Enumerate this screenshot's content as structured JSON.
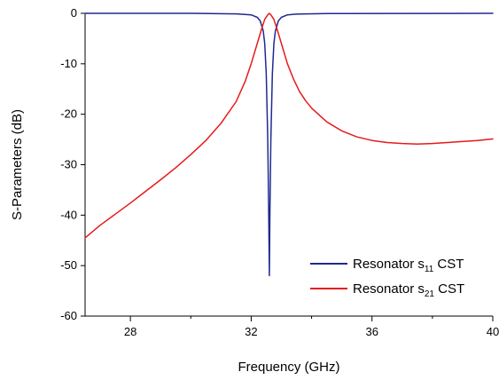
{
  "chart_data": {
    "type": "line",
    "xlabel": "Frequency (GHz)",
    "ylabel": "S-Parameters (dB)",
    "xlim": [
      26.5,
      40
    ],
    "ylim": [
      -60,
      0
    ],
    "xticks": [
      28,
      32,
      36,
      40
    ],
    "yticks": [
      0,
      -10,
      -20,
      -30,
      -40,
      -50,
      -60
    ],
    "xtick_labels": [
      "28",
      "32",
      "36",
      "40"
    ],
    "ytick_labels": [
      "0",
      "-10",
      "-20",
      "-30",
      "-40",
      "-50",
      "-60"
    ],
    "grid": false,
    "legend_position": "bottom-right",
    "series": [
      {
        "name_main": "Resonator s",
        "name_sub": "11",
        "name_tail": " CST",
        "color": "#1f2a8f",
        "points": [
          [
            26.5,
            0
          ],
          [
            30.0,
            0
          ],
          [
            31.5,
            -0.1
          ],
          [
            32.0,
            -0.3
          ],
          [
            32.2,
            -0.8
          ],
          [
            32.3,
            -1.5
          ],
          [
            32.4,
            -3.5
          ],
          [
            32.45,
            -6
          ],
          [
            32.5,
            -12
          ],
          [
            32.55,
            -25
          ],
          [
            32.58,
            -40
          ],
          [
            32.6,
            -52
          ],
          [
            32.62,
            -40
          ],
          [
            32.65,
            -25
          ],
          [
            32.7,
            -12
          ],
          [
            32.75,
            -6
          ],
          [
            32.8,
            -3.5
          ],
          [
            32.9,
            -1.5
          ],
          [
            33.0,
            -0.8
          ],
          [
            33.2,
            -0.3
          ],
          [
            33.5,
            -0.15
          ],
          [
            34.5,
            -0.05
          ],
          [
            40,
            0
          ]
        ]
      },
      {
        "name_main": "Resonator s",
        "name_sub": "21",
        "name_tail": " CST",
        "color": "#e8191b",
        "points": [
          [
            26.5,
            -44.5
          ],
          [
            27.0,
            -42
          ],
          [
            27.5,
            -39.8
          ],
          [
            28.0,
            -37.6
          ],
          [
            28.5,
            -35.3
          ],
          [
            29.0,
            -33.0
          ],
          [
            29.5,
            -30.6
          ],
          [
            30.0,
            -28.0
          ],
          [
            30.5,
            -25.2
          ],
          [
            31.0,
            -21.8
          ],
          [
            31.5,
            -17.5
          ],
          [
            31.8,
            -13.5
          ],
          [
            32.0,
            -10.0
          ],
          [
            32.2,
            -6.0
          ],
          [
            32.35,
            -3.0
          ],
          [
            32.45,
            -1.2
          ],
          [
            32.55,
            -0.3
          ],
          [
            32.6,
            0
          ],
          [
            32.65,
            -0.3
          ],
          [
            32.75,
            -1.2
          ],
          [
            32.85,
            -3.0
          ],
          [
            33.0,
            -6.0
          ],
          [
            33.2,
            -10.0
          ],
          [
            33.4,
            -13.0
          ],
          [
            33.6,
            -15.5
          ],
          [
            33.8,
            -17.3
          ],
          [
            34.0,
            -18.8
          ],
          [
            34.5,
            -21.5
          ],
          [
            35.0,
            -23.3
          ],
          [
            35.5,
            -24.5
          ],
          [
            36.0,
            -25.2
          ],
          [
            36.5,
            -25.6
          ],
          [
            37.0,
            -25.8
          ],
          [
            37.5,
            -25.9
          ],
          [
            38.0,
            -25.8
          ],
          [
            38.5,
            -25.6
          ],
          [
            39.0,
            -25.4
          ],
          [
            39.5,
            -25.2
          ],
          [
            40.0,
            -24.9
          ]
        ]
      }
    ]
  }
}
